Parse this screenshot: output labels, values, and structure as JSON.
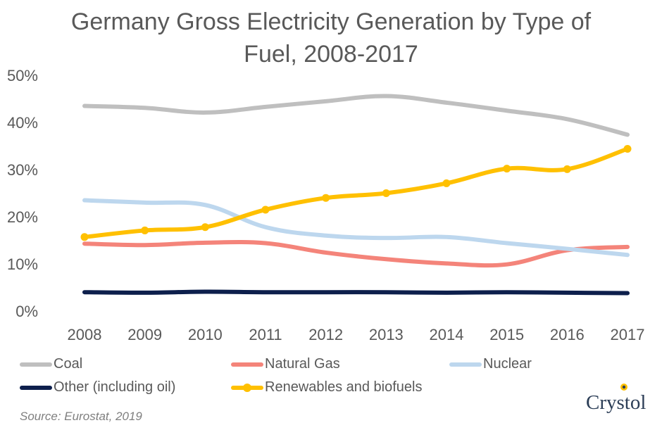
{
  "title_line1": "Germany Gross Electricity Generation by Type of",
  "title_line2": "Fuel, 2008-2017",
  "source": "Source: Eurostat, 2019",
  "logo_text": "Crystol",
  "chart_data": {
    "type": "line",
    "title": "Germany Gross Electricity Generation by Type of Fuel, 2008-2017",
    "categories": [
      "2008",
      "2009",
      "2010",
      "2011",
      "2012",
      "2013",
      "2014",
      "2015",
      "2016",
      "2017"
    ],
    "ylim": [
      0,
      50
    ],
    "yticks": [
      "0%",
      "10%",
      "20%",
      "30%",
      "40%",
      "50%"
    ],
    "grid": false,
    "legend_position": "bottom",
    "series": [
      {
        "name": "Coal",
        "color": "#bfbfbf",
        "markers": false,
        "values": [
          43.5,
          43.1,
          42.1,
          43.3,
          44.5,
          45.6,
          44.2,
          42.5,
          40.7,
          37.4
        ]
      },
      {
        "name": "Natural Gas",
        "color": "#f4847a",
        "markers": false,
        "values": [
          14.3,
          14.0,
          14.5,
          14.4,
          12.4,
          11.0,
          10.1,
          9.9,
          12.9,
          13.6
        ]
      },
      {
        "name": "Nuclear",
        "color": "#bdd7ee",
        "markers": false,
        "values": [
          23.5,
          23.0,
          22.5,
          17.8,
          16.0,
          15.5,
          15.7,
          14.4,
          13.2,
          11.9
        ]
      },
      {
        "name": "Other (including oil)",
        "color": "#0d1f4c",
        "markers": false,
        "values": [
          4.0,
          3.9,
          4.1,
          4.0,
          4.0,
          4.0,
          3.9,
          4.0,
          3.9,
          3.8
        ]
      },
      {
        "name": "Renewables and biofuels",
        "color": "#ffc000",
        "markers": true,
        "values": [
          15.7,
          17.1,
          17.8,
          21.5,
          24.0,
          25.0,
          27.1,
          30.2,
          30.1,
          34.4
        ]
      }
    ]
  }
}
